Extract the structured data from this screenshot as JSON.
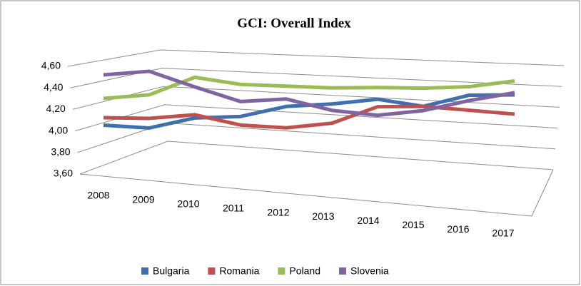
{
  "chart_data": {
    "type": "line",
    "title": "GCI: Overall Index",
    "categories": [
      "2008",
      "2009",
      "2010",
      "2011",
      "2012",
      "2013",
      "2014",
      "2015",
      "2016",
      "2017"
    ],
    "series": [
      {
        "name": "Bulgaria",
        "color": "#3f6fae",
        "values": [
          4.03,
          4.02,
          4.13,
          4.16,
          4.27,
          4.31,
          4.37,
          4.32,
          4.44,
          4.46
        ]
      },
      {
        "name": "Romania",
        "color": "#c0504d",
        "values": [
          4.1,
          4.11,
          4.16,
          4.08,
          4.07,
          4.13,
          4.3,
          4.32,
          4.3,
          4.28
        ]
      },
      {
        "name": "Poland",
        "color": "#9bbb59",
        "values": [
          4.28,
          4.33,
          4.51,
          4.46,
          4.46,
          4.46,
          4.48,
          4.49,
          4.52,
          4.59
        ]
      },
      {
        "name": "Slovenia",
        "color": "#8064a2",
        "values": [
          4.5,
          4.55,
          4.42,
          4.3,
          4.34,
          4.25,
          4.22,
          4.28,
          4.39,
          4.48
        ]
      }
    ],
    "ylim": [
      3.6,
      4.6
    ],
    "yticks": [
      {
        "value": 3.6,
        "label": "3,60"
      },
      {
        "value": 3.8,
        "label": "3,80"
      },
      {
        "value": 4.0,
        "label": "4,00"
      },
      {
        "value": 4.2,
        "label": "4,20"
      },
      {
        "value": 4.4,
        "label": "4,40"
      },
      {
        "value": 4.6,
        "label": "4,60"
      }
    ],
    "grid": true,
    "legend": "bottom"
  }
}
